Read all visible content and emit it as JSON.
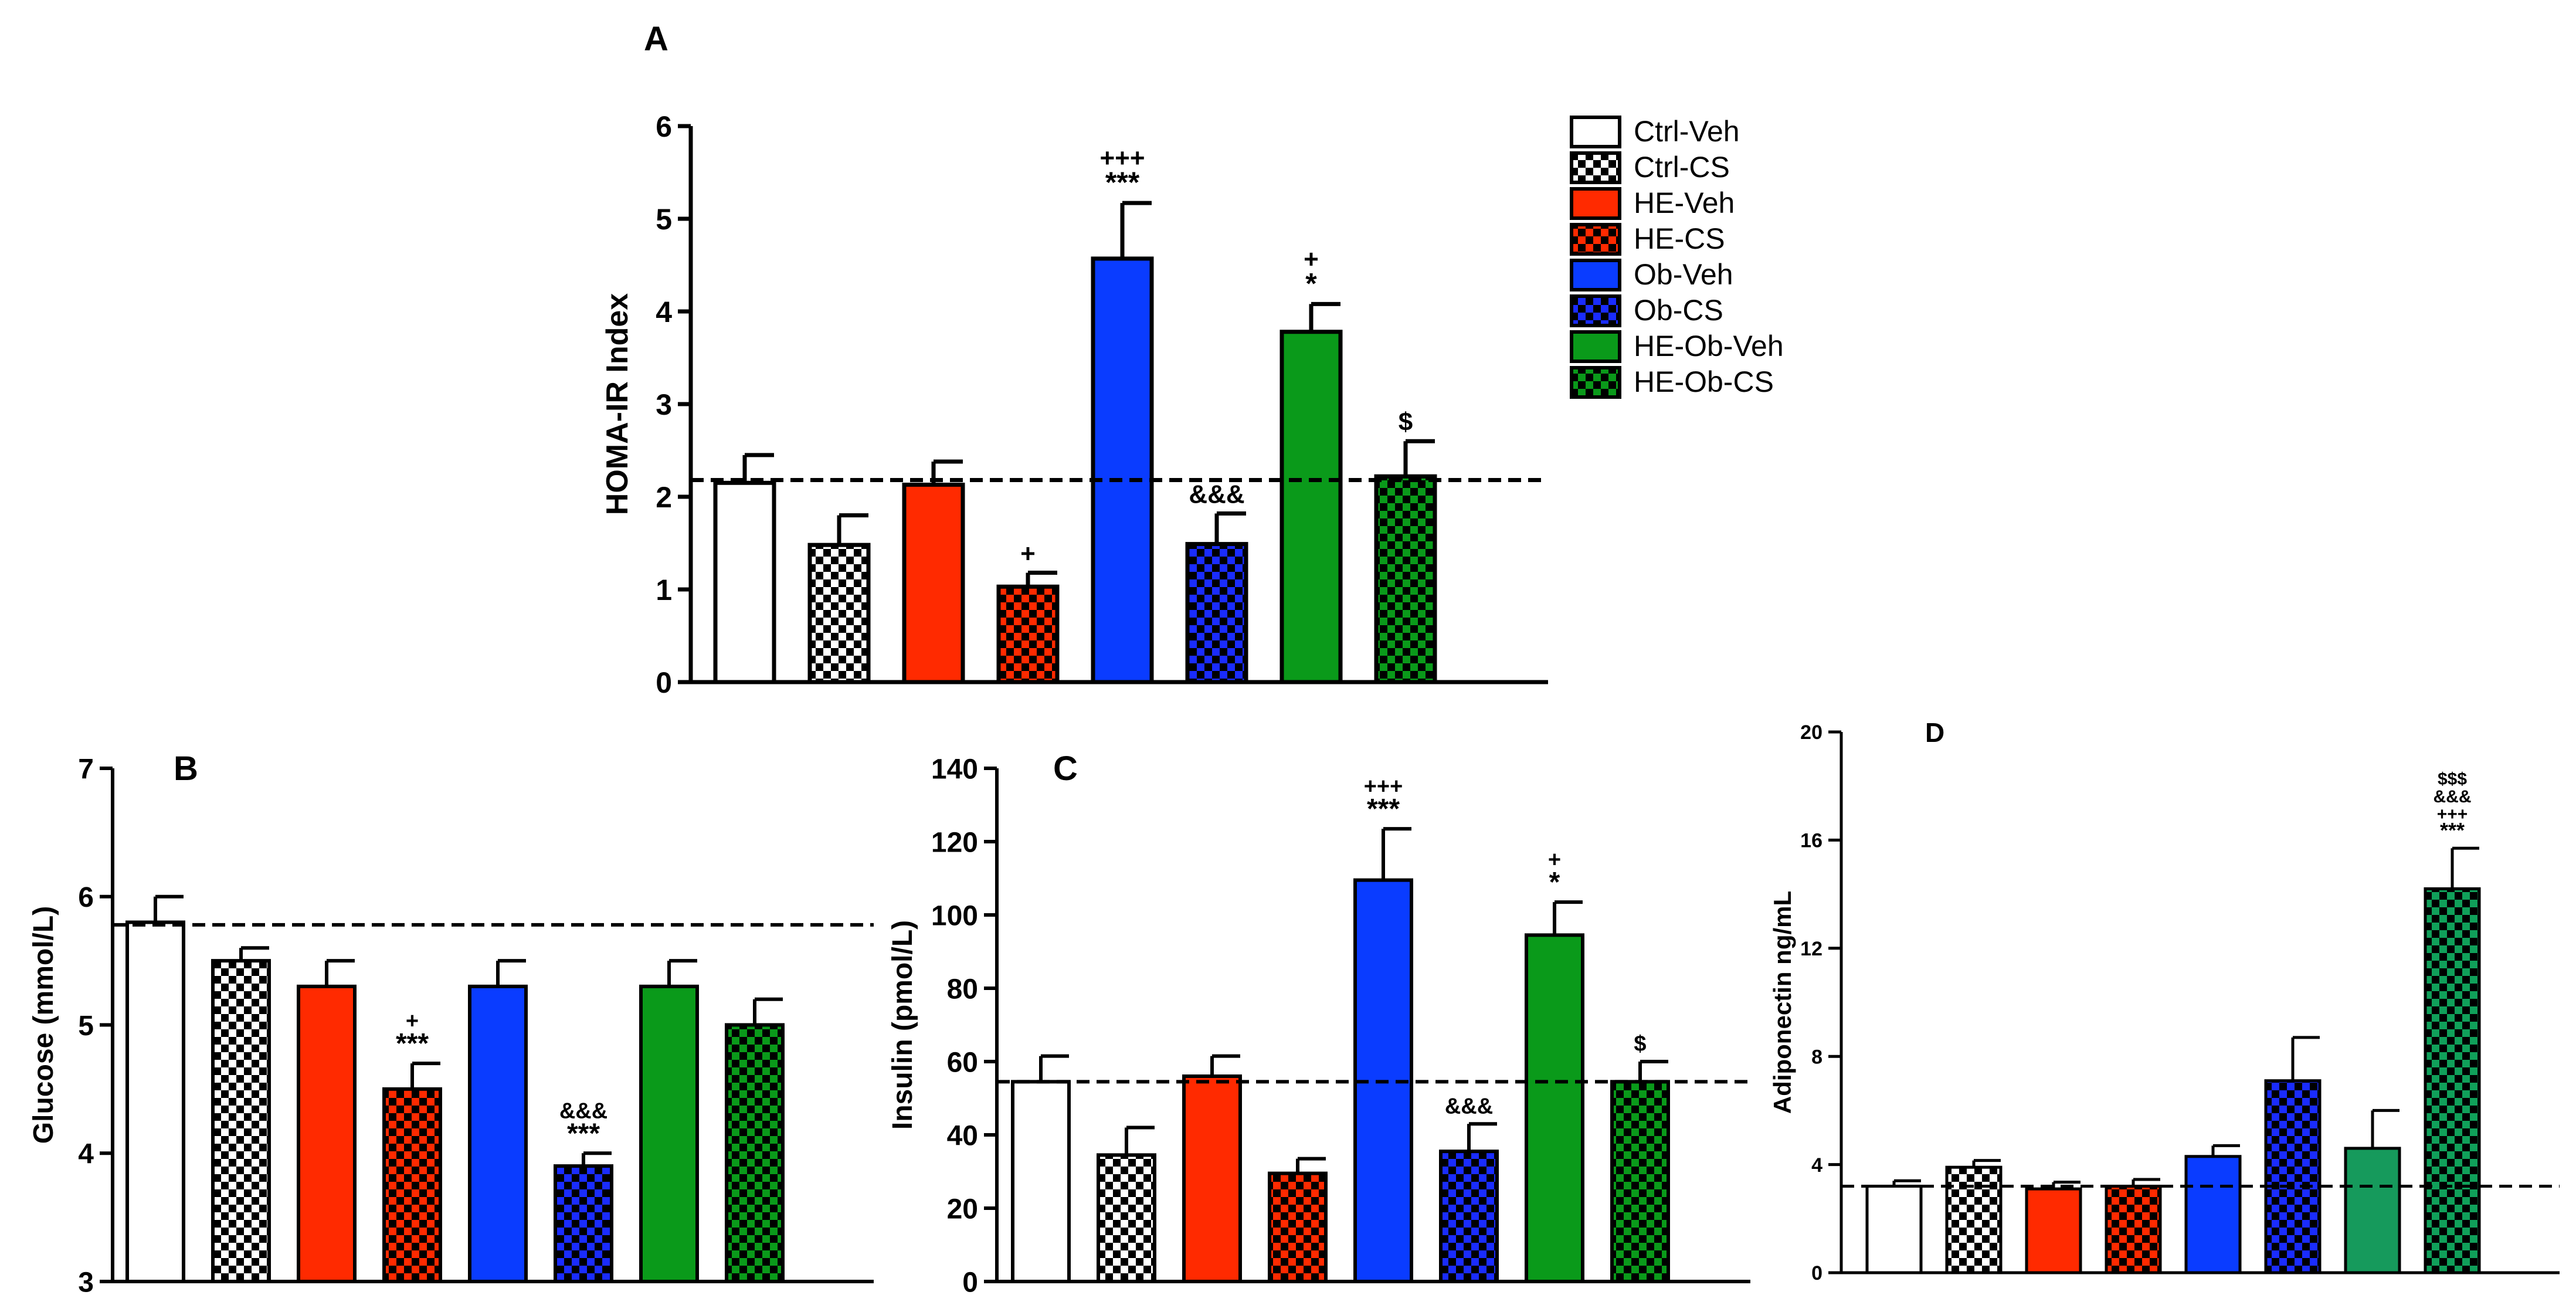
{
  "colors": {
    "Ctrl-Veh": "#ffffff",
    "Ctrl-CS": "#ffffff",
    "HE-Veh": "#ff2a00",
    "HE-CS": "#ff2a00",
    "Ob-Veh": "#0a3cff",
    "Ob-CS": "#1a2cff",
    "HE-Ob-Veh": "#0a9a1a",
    "HE-Ob-CS": "#0a7a1a",
    "HE-Ob-Veh-D": "#169a5c",
    "HE-Ob-CS-D": "#10804a",
    "axis": "#000000"
  },
  "legend": {
    "items": [
      "Ctrl-Veh",
      "Ctrl-CS",
      "HE-Veh",
      "HE-CS",
      "Ob-Veh",
      "Ob-CS",
      "HE-Ob-Veh",
      "HE-Ob-CS"
    ],
    "checkered": [
      false,
      true,
      false,
      true,
      false,
      true,
      false,
      true
    ]
  },
  "chart_data": [
    {
      "panel": "A",
      "type": "bar",
      "ylabel": "HOMA-IR Index",
      "ylim": [
        0,
        6
      ],
      "yticks": [
        "0",
        "1",
        "2",
        "3",
        "4",
        "5",
        "6"
      ],
      "categories": [
        "Ctrl-Veh",
        "Ctrl-CS",
        "HE-Veh",
        "HE-CS",
        "Ob-Veh",
        "Ob-CS",
        "HE-Ob-Veh",
        "HE-Ob-CS"
      ],
      "values": [
        2.15,
        1.48,
        2.13,
        1.03,
        4.57,
        1.49,
        3.78,
        2.22
      ],
      "errors": [
        0.3,
        0.32,
        0.25,
        0.15,
        0.6,
        0.33,
        0.3,
        0.38
      ],
      "reference_line": 2.18,
      "annotations": [
        "",
        "",
        "",
        "+",
        "+++\n***",
        "&&&",
        "+\n*",
        "$"
      ]
    },
    {
      "panel": "B",
      "type": "bar",
      "ylabel": "Glucose (mmol/L)",
      "ylim": [
        3,
        7
      ],
      "yticks": [
        "3",
        "4",
        "5",
        "6",
        "7"
      ],
      "categories": [
        "Ctrl-Veh",
        "Ctrl-CS",
        "HE-Veh",
        "HE-CS",
        "Ob-Veh",
        "Ob-CS",
        "HE-Ob-Veh",
        "HE-Ob-CS"
      ],
      "values": [
        5.8,
        5.5,
        5.3,
        4.5,
        5.3,
        3.9,
        5.3,
        5.0
      ],
      "errors": [
        0.2,
        0.1,
        0.2,
        0.2,
        0.2,
        0.1,
        0.2,
        0.2
      ],
      "reference_line": 5.78,
      "annotations": [
        "",
        "",
        "",
        "+\n***",
        "",
        "&&&\n***",
        "",
        ""
      ]
    },
    {
      "panel": "C",
      "type": "bar",
      "ylabel": "Insulin (pmol/L)",
      "ylim": [
        0,
        140
      ],
      "yticks": [
        "0",
        "20",
        "40",
        "60",
        "80",
        "100",
        "120",
        "140"
      ],
      "categories": [
        "Ctrl-Veh",
        "Ctrl-CS",
        "HE-Veh",
        "HE-CS",
        "Ob-Veh",
        "Ob-CS",
        "HE-Ob-Veh",
        "HE-Ob-CS"
      ],
      "values": [
        54.5,
        34.5,
        56,
        29.5,
        109.5,
        35.5,
        94.5,
        54.5
      ],
      "errors": [
        7,
        7.5,
        5.5,
        4,
        14,
        7.5,
        9,
        5.5
      ],
      "reference_line": 54.5,
      "annotations": [
        "",
        "",
        "",
        "",
        "+++\n***",
        "&&&",
        "+\n*",
        "$"
      ]
    },
    {
      "panel": "D",
      "type": "bar",
      "ylabel": "Adiponectin ng/mL",
      "ylim": [
        0,
        20
      ],
      "yticks": [
        "0",
        "4",
        "8",
        "12",
        "16",
        "20"
      ],
      "categories": [
        "Ctrl-Veh",
        "Ctrl-CS",
        "HE-Veh",
        "HE-CS",
        "Ob-Veh",
        "Ob-CS",
        "HE-Ob-Veh",
        "HE-Ob-CS"
      ],
      "values": [
        3.2,
        3.9,
        3.1,
        3.2,
        4.3,
        7.1,
        4.6,
        14.2
      ],
      "errors": [
        0.2,
        0.25,
        0.25,
        0.25,
        0.4,
        1.6,
        1.4,
        1.5
      ],
      "reference_line": 3.2,
      "annotations": [
        "",
        "",
        "",
        "",
        "",
        "",
        "",
        "$$$\n&&&\n+++\n***"
      ]
    }
  ]
}
